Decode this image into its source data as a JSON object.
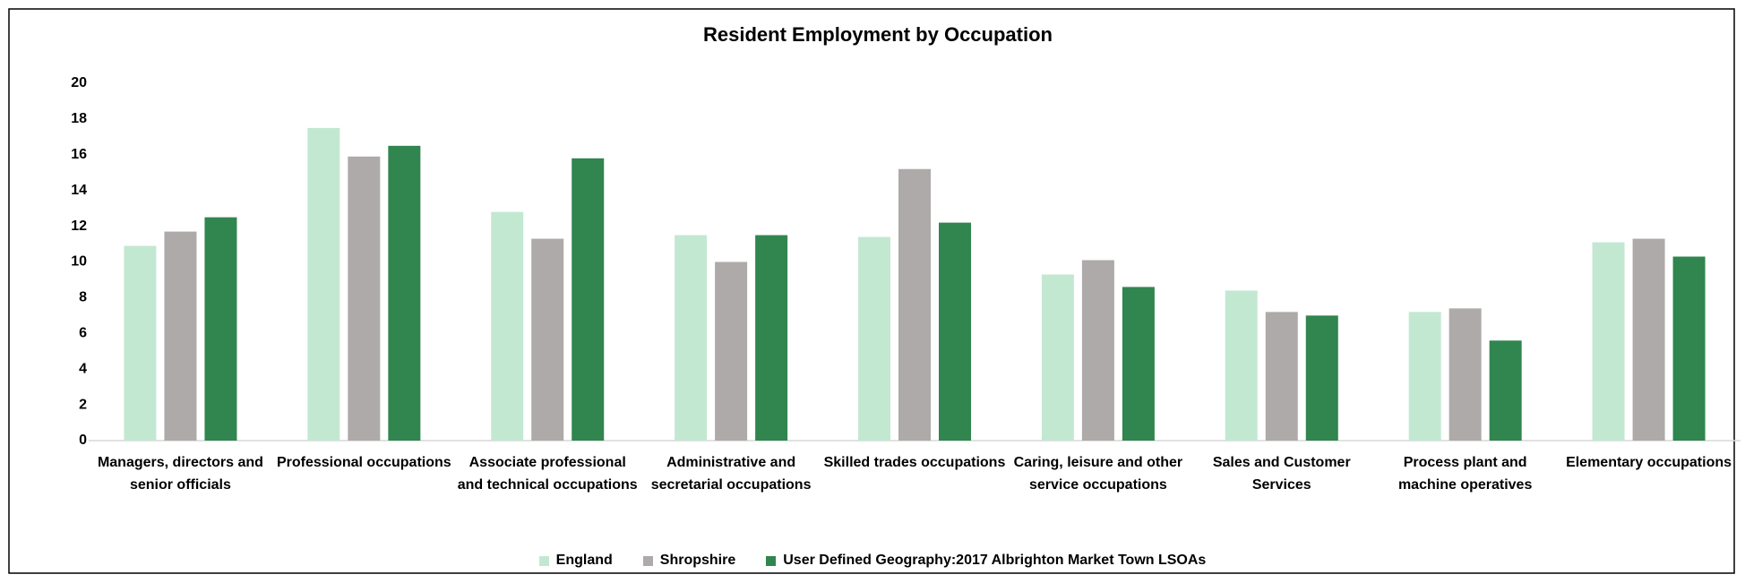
{
  "chart_data": {
    "type": "bar",
    "title": "Resident Employment by Occupation",
    "categories": [
      "Managers, directors and senior officials",
      "Professional occupations",
      "Associate professional and technical occupations",
      "Administrative and secretarial occupations",
      "Skilled trades occupations",
      "Caring, leisure and other service occupations",
      "Sales and Customer Services",
      "Process plant and machine operatives",
      "Elementary occupations"
    ],
    "series": [
      {
        "name": "England",
        "color": "#c3e8d2",
        "values": [
          10.9,
          17.5,
          12.8,
          11.5,
          11.4,
          9.3,
          8.4,
          7.2,
          11.1
        ]
      },
      {
        "name": "Shropshire",
        "color": "#aeaaa9",
        "values": [
          11.7,
          15.9,
          11.3,
          10.0,
          15.2,
          10.1,
          7.2,
          7.4,
          11.3
        ]
      },
      {
        "name": "User Defined Geography:2017 Albrighton Market Town LSOAs",
        "color": "#31854f",
        "values": [
          12.5,
          16.5,
          15.8,
          11.5,
          12.2,
          8.6,
          7.0,
          5.6,
          10.3
        ]
      }
    ],
    "ylim": [
      0,
      20
    ],
    "yticks": [
      0,
      2,
      4,
      6,
      8,
      10,
      12,
      14,
      16,
      18,
      20
    ],
    "grid": false,
    "legend": "bottom"
  }
}
